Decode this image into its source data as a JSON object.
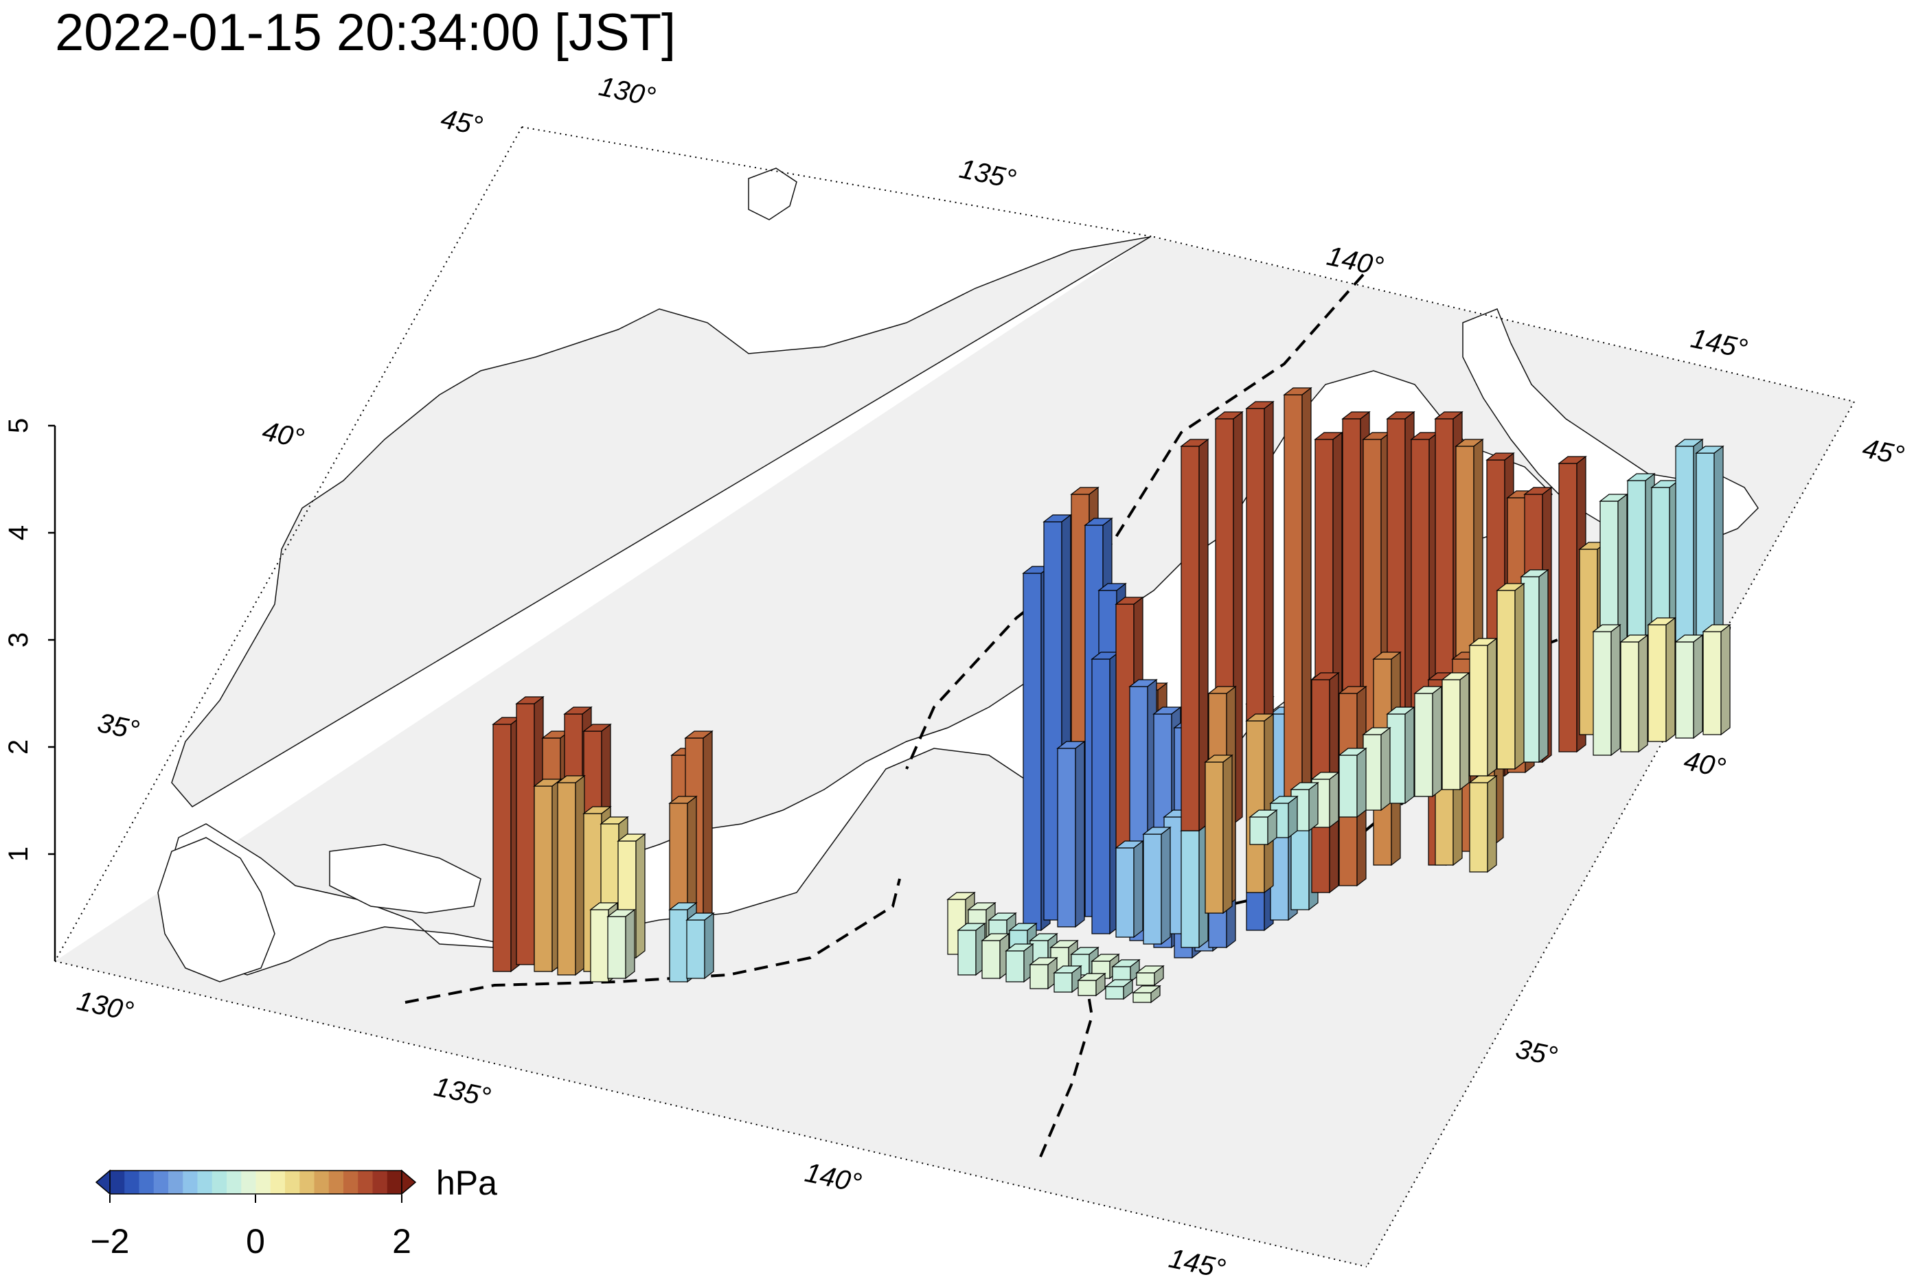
{
  "title": "2022-01-15 20:34:00 [JST]",
  "map": {
    "projection": "oblique 3D perspective",
    "lon_range": [
      128,
      147
    ],
    "lat_range": [
      30,
      46
    ],
    "lon_ticks_top": [
      "130°",
      "135°",
      "140°",
      "145°"
    ],
    "lat_ticks_left": [
      "45°",
      "40°",
      "35°"
    ],
    "lon_ticks_bottom": [
      "130°",
      "135°",
      "140°",
      "145°"
    ],
    "lat_ticks_right": [
      "45°",
      "40°",
      "35°"
    ],
    "z_ticks": [
      "1",
      "2",
      "3",
      "4",
      "5"
    ],
    "plane_color": "#f0f0f0",
    "trench_style": "dashed black"
  },
  "colorbar": {
    "unit": "hPa",
    "tick_labels": [
      "−2",
      "0",
      "2"
    ],
    "range": [
      -2,
      2
    ],
    "colors": [
      "#1f3b99",
      "#2e55b8",
      "#4672cc",
      "#5f8ad9",
      "#7aa6e0",
      "#8ec3ea",
      "#9fd8e8",
      "#b2e6e2",
      "#c8efe0",
      "#e0f4d8",
      "#eef5c8",
      "#f4eeaa",
      "#eddc8c",
      "#e2c070",
      "#d6a35a",
      "#cc874a",
      "#c06a3c",
      "#b04e30",
      "#9a3524",
      "#7a1e12"
    ]
  }
}
